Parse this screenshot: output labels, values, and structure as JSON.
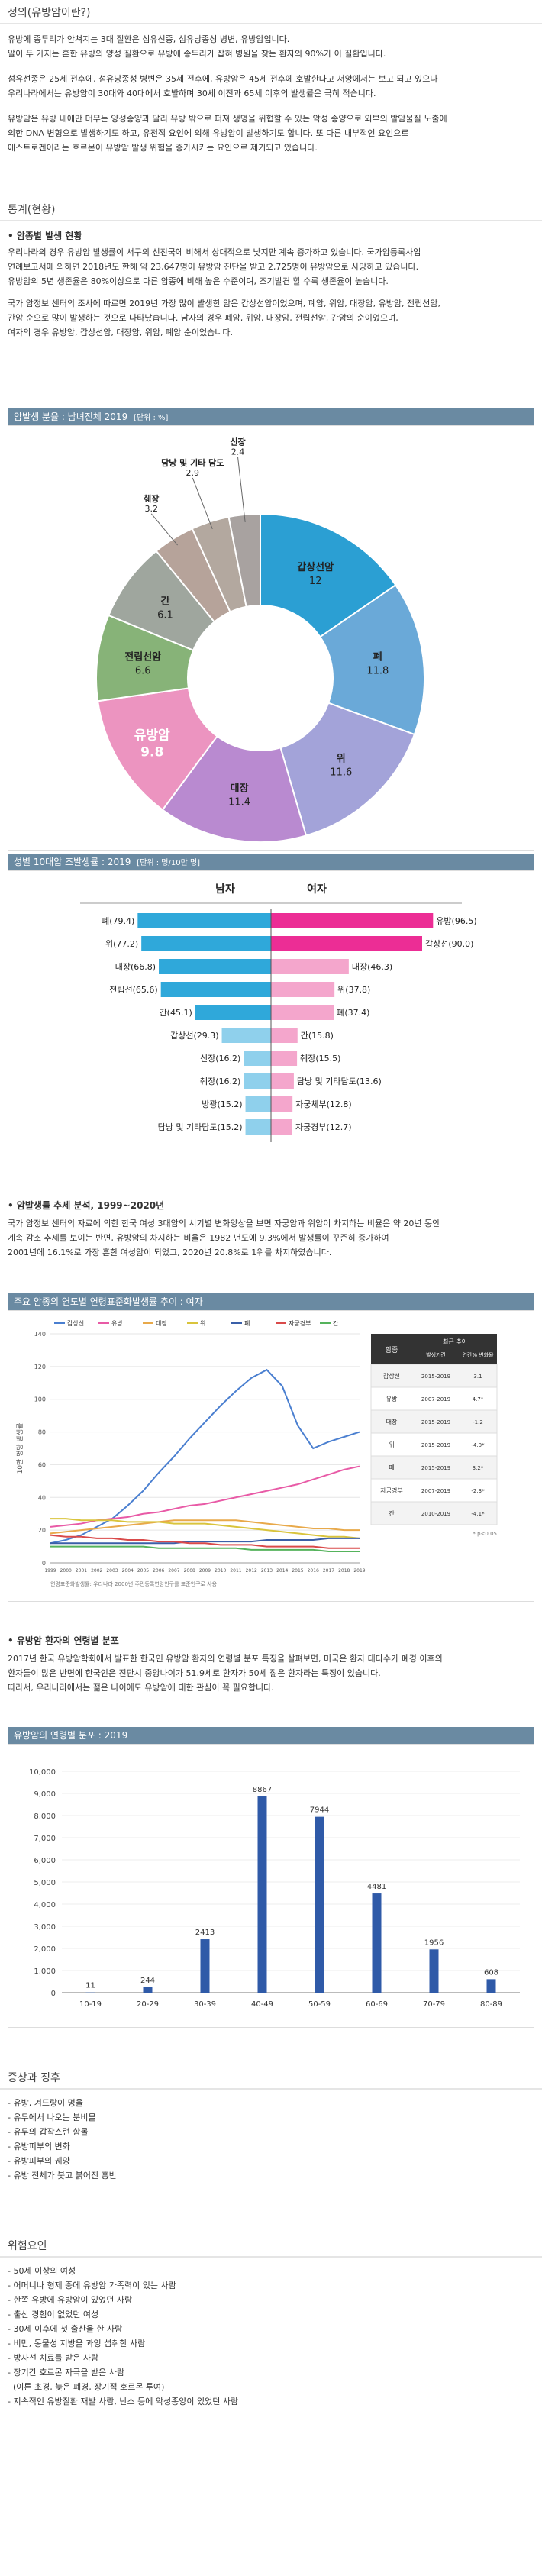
{
  "def": {
    "title": "정의(유방암이란?)",
    "paras": [
      "유방에 종두리가 안쳐지는 3대 질환은 섬유선종, 섬유낭종성 병변, 유방암입니다.",
      "알이 두 가지는 흔한 유방의 양성 질환으로 유방에 종두리가 잡혀 병원을 찾는 환자의 90%가 이 질환입니다.",
      "섬유선종은 25세 전후에, 섬유낭종성 병변은 35세 전후에, 유방암은 45세 전후에 호발한다고 서양에서는 보고 되고 있으나",
      "우리나라에서는 유방암이 30대와 40대에서 호발하며 30세 이전과 65세 이후의 발생률은 극히 적습니다.",
      "유방암은 유방 내에만 머무는 양성종양과 달리 유방 밖으로 퍼져 생명을 위협할 수 있는 악성 종양으로 외부의 발암물질 노출에",
      "의한 DNA 변형으로 발생하기도 하고, 유전적 요인에 의해 유방암이 발생하기도 합니다. 또 다른 내부적인 요인으로",
      "에스트로겐이라는 호르몬이 유방암 발생 위험을 증가시키는 요인으로 제기되고 있습니다."
    ]
  },
  "stats": {
    "title": "통계(현황)",
    "sub1": "• 암종별 발생 현황",
    "paras1": [
      "우리나라의 경우 유방암 발생률이 서구의 선진국에 비해서 상대적으로 낮지만 계속 증가하고 있습니다. 국가암등록사업",
      "연례보고서에 의하면 2018년도 한해 약 23,647명이 유방암 진단을 받고 2,725명이 유방암으로 사망하고 있습니다.",
      "유방암의 5년 생존율은 80%이상으로 다른 암종에 비해 높은 수준이며, 조기발견 할 수록 생존율이 높습니다.",
      "국가 암정보 센터의 조사에 따르면 2019년 가장 많이 발생한 암은 갑상선암이었으며, 폐암, 위암, 대장암, 유방암, 전립선암,",
      "간암 순으로 많이 발생하는 것으로 나타났습니다. 남자의 경우 폐암, 위암, 대장암, 전립선암, 간암의 순이었으며,",
      "여자의 경우 유방암, 갑상선암, 대장암, 위암, 폐암 순이었습니다."
    ]
  },
  "donut": {
    "header": "암발생 분율 : 남녀전체 2019",
    "unit": "[단위 : %]",
    "slices": [
      {
        "label": "갑상선암",
        "value": 12,
        "color": "#2b9fd3"
      },
      {
        "label": "폐",
        "value": 11.8,
        "color": "#6aa9d8"
      },
      {
        "label": "위",
        "value": 11.6,
        "color": "#a3a3d9"
      },
      {
        "label": "대장",
        "value": 11.4,
        "color": "#b98ad0"
      },
      {
        "label": "유방암",
        "value": 9.8,
        "color": "#ec94c0"
      },
      {
        "label": "전립선암",
        "value": 6.6,
        "color": "#87b378"
      },
      {
        "label": "간",
        "value": 6.1,
        "color": "#9fa69e"
      },
      {
        "label": "췌장",
        "value": 3.2,
        "color": "#b6a39a"
      },
      {
        "label": "담낭 및 기타 담도",
        "value": 2.9,
        "color": "#b3a89f"
      },
      {
        "label": "신장",
        "value": 2.4,
        "color": "#a8a2a0"
      }
    ]
  },
  "chart_data": [
    {
      "type": "pie",
      "title": "암발생 분율 : 남녀전체 2019",
      "categories": [
        "갑상선암",
        "폐",
        "위",
        "대장",
        "유방암",
        "전립선암",
        "간",
        "췌장",
        "담낭 및 기타 담도",
        "신장"
      ],
      "values": [
        12,
        11.8,
        11.6,
        11.4,
        9.8,
        6.6,
        6.1,
        3.2,
        2.9,
        2.4
      ]
    },
    {
      "type": "bar",
      "title": "성별 10대암 조발생률 : 2019",
      "series": [
        {
          "name": "남자",
          "categories": [
            "폐",
            "위",
            "대장",
            "전립선",
            "간",
            "갑상선",
            "신장",
            "췌장",
            "방광",
            "담낭 및 기타담도"
          ],
          "values": [
            79.4,
            77.2,
            66.8,
            65.6,
            45.1,
            29.3,
            16.2,
            16.2,
            15.2,
            15.2
          ]
        },
        {
          "name": "여자",
          "categories": [
            "유방",
            "갑상선",
            "대장",
            "위",
            "폐",
            "간",
            "췌장",
            "담낭 및 기타담도",
            "자궁체부",
            "자궁경부"
          ],
          "values": [
            96.5,
            90.0,
            46.3,
            37.8,
            37.4,
            15.8,
            15.5,
            13.6,
            12.8,
            12.7
          ]
        }
      ]
    },
    {
      "type": "line",
      "title": "주요 암종의 연도별 연령표준화발생률 추이 : 여자",
      "x": [
        1999,
        2000,
        2001,
        2002,
        2003,
        2004,
        2005,
        2006,
        2007,
        2008,
        2009,
        2010,
        2011,
        2012,
        2013,
        2014,
        2015,
        2016,
        2017,
        2018,
        2019
      ],
      "ylim": [
        0,
        140
      ],
      "series": [
        {
          "name": "갑상선",
          "values": [
            12,
            14,
            17,
            22,
            27,
            35,
            44,
            55,
            65,
            76,
            86,
            96,
            105,
            113,
            118,
            108,
            84,
            70,
            74,
            77,
            80
          ]
        },
        {
          "name": "유방",
          "values": [
            22,
            23,
            24,
            26,
            27,
            28,
            30,
            31,
            33,
            35,
            36,
            38,
            40,
            42,
            44,
            46,
            48,
            51,
            54,
            57,
            59
          ]
        },
        {
          "name": "대장",
          "values": [
            18,
            19,
            20,
            21,
            22,
            23,
            24,
            25,
            26,
            26,
            26,
            26,
            26,
            25,
            24,
            23,
            22,
            21,
            21,
            20,
            20
          ]
        },
        {
          "name": "위",
          "values": [
            27,
            27,
            26,
            26,
            26,
            25,
            25,
            25,
            24,
            24,
            24,
            23,
            22,
            21,
            20,
            19,
            18,
            17,
            16,
            16,
            15
          ]
        },
        {
          "name": "폐",
          "values": [
            12,
            12,
            12,
            12,
            12,
            12,
            12,
            12,
            12,
            13,
            13,
            13,
            13,
            13,
            14,
            14,
            14,
            14,
            15,
            15,
            15
          ]
        },
        {
          "name": "자궁경부",
          "values": [
            17,
            16,
            16,
            15,
            15,
            14,
            14,
            13,
            13,
            12,
            12,
            11,
            11,
            11,
            10,
            10,
            10,
            10,
            9,
            9,
            9
          ]
        },
        {
          "name": "간",
          "values": [
            10,
            10,
            10,
            10,
            10,
            10,
            10,
            9,
            9,
            9,
            9,
            9,
            9,
            8,
            8,
            8,
            8,
            8,
            7,
            7,
            7
          ]
        }
      ]
    },
    {
      "type": "bar",
      "title": "유방암의 연령별 분포 : 2019",
      "categories": [
        "10-19",
        "20-29",
        "30-39",
        "40-49",
        "50-59",
        "60-69",
        "70-79",
        "80-89"
      ],
      "values": [
        11,
        244,
        2413,
        8867,
        7944,
        4481,
        1956,
        608
      ],
      "ylim": [
        0,
        10000
      ]
    }
  ],
  "sexbar": {
    "header": "성별 10대암 조발생률 : 2019",
    "unit": "[단위 : 명/10만 명]",
    "male_label": "남자",
    "female_label": "여자",
    "male_color": "#2fa8da",
    "female_color": "#ec2d95",
    "female_light": "#f4a6cc",
    "male_light": "#8fd0ec",
    "male": [
      {
        "label": "폐(79.4)",
        "value": 79.4
      },
      {
        "label": "위(77.2)",
        "value": 77.2
      },
      {
        "label": "대장(66.8)",
        "value": 66.8
      },
      {
        "label": "전립선(65.6)",
        "value": 65.6
      },
      {
        "label": "간(45.1)",
        "value": 45.1
      },
      {
        "label": "갑상선(29.3)",
        "value": 29.3
      },
      {
        "label": "신장(16.2)",
        "value": 16.2
      },
      {
        "label": "췌장(16.2)",
        "value": 16.2
      },
      {
        "label": "방광(15.2)",
        "value": 15.2
      },
      {
        "label": "담낭 및 기타담도(15.2)",
        "value": 15.2
      }
    ],
    "female": [
      {
        "label": "유방(96.5)",
        "value": 96.5
      },
      {
        "label": "갑상선(90.0)",
        "value": 90.0
      },
      {
        "label": "대장(46.3)",
        "value": 46.3
      },
      {
        "label": "위(37.8)",
        "value": 37.8
      },
      {
        "label": "폐(37.4)",
        "value": 37.4
      },
      {
        "label": "간(15.8)",
        "value": 15.8
      },
      {
        "label": "췌장(15.5)",
        "value": 15.5
      },
      {
        "label": "담낭 및 기타담도(13.6)",
        "value": 13.6
      },
      {
        "label": "자궁체부(12.8)",
        "value": 12.8
      },
      {
        "label": "자궁경부(12.7)",
        "value": 12.7
      }
    ]
  },
  "trend": {
    "sub": "• 암발생률 추세 분석, 1999~2020년",
    "paras": [
      "국가 암정보 센터의 자료에 의한 한국 여성 3대암의 시기별 변화양상을 보면 자궁암과 위암이 차지하는 비율은 약 20년 동안",
      "계속 감소 추세를 보이는 반면, 유방암의 차지하는 비율은 1982 년도에 9.3%에서 발생률이 꾸준히 증가하여",
      "2001년에 16.1%로 가장 흔한 여성암이 되었고, 2020년 20.8%로 1위를 차지하였습니다."
    ]
  },
  "line": {
    "header": "주요 암종의 연도별 연령표준화발생률 추이 : 여자",
    "ylabel": "10만 명당 발생률",
    "yticks": [
      "0",
      "20",
      "40",
      "60",
      "80",
      "100",
      "120",
      "140"
    ],
    "xticks": [
      "1999",
      "2000",
      "2001",
      "2002",
      "2003",
      "2004",
      "2005",
      "2006",
      "2007",
      "2008",
      "2009",
      "2010",
      "2011",
      "2012",
      "2013",
      "2014",
      "2015",
      "2016",
      "2017",
      "2018",
      "2019"
    ],
    "legend": [
      {
        "name": "갑상선",
        "color": "#4a7fd0"
      },
      {
        "name": "유방",
        "color": "#e85aa6"
      },
      {
        "name": "대장",
        "color": "#e8a94a"
      },
      {
        "name": "위",
        "color": "#d9c43c"
      },
      {
        "name": "폐",
        "color": "#3a5fa8"
      },
      {
        "name": "자궁경부",
        "color": "#d94a4a"
      },
      {
        "name": "간",
        "color": "#55b35c"
      }
    ],
    "footnote": "연령표준화발생률: 우리나라 2000년 주민등록연앙인구를 표준인구로 사용",
    "table": {
      "header": [
        "암종",
        "최근 추이"
      ],
      "subheader": [
        "발생기간",
        "연간% 변화율"
      ],
      "rows": [
        [
          "갑상선",
          "2015-2019",
          "3.1"
        ],
        [
          "유방",
          "2007-2019",
          "4.7*"
        ],
        [
          "대장",
          "2015-2019",
          "-1.2"
        ],
        [
          "위",
          "2015-2019",
          "-4.0*"
        ],
        [
          "폐",
          "2015-2019",
          "3.2*"
        ],
        [
          "자궁경부",
          "2007-2019",
          "-2.3*"
        ],
        [
          "간",
          "2010-2019",
          "-4.1*"
        ]
      ],
      "note": "* p<0.05"
    }
  },
  "age": {
    "sub": "• 유방암 환자의 연령별 분포",
    "paras": [
      "2017년 한국 유방암학회에서 발표한 한국인 유방암 환자의 연령별 분포 특징을 살펴보면, 미국은 환자 대다수가 폐경 이후의",
      "환자들이 많은 반면에 한국인은 진단시 중앙나이가 51.9세로 환자가 50세 젊은 환자라는 특징이 있습니다.",
      "따라서, 우리나라에서는 젊은 나이에도 유방암에 대한 관심이 꼭 필요합니다."
    ],
    "header": "유방암의 연령별 분포 : 2019",
    "yticks": [
      "0",
      "1,000",
      "2,000",
      "3,000",
      "4,000",
      "5,000",
      "6,000",
      "7,000",
      "8,000",
      "9,000",
      "10,000"
    ],
    "categories": [
      "10-19",
      "20-29",
      "30-39",
      "40-49",
      "50-59",
      "60-69",
      "70-79",
      "80-89"
    ],
    "values": [
      11,
      244,
      2413,
      8867,
      7944,
      4481,
      1956,
      608
    ],
    "bar_color": "#2f5aa8"
  },
  "symptoms": {
    "title": "증상과 징후",
    "items": [
      "- 유방, 겨드랑이 멍울",
      "- 유두에서 나오는 분비물",
      "- 유두의 갑작스런 함몰",
      "- 유방피부의 변화",
      "- 유방피부의 궤양",
      "- 유방 전체가 붓고 붉어진 홍반"
    ]
  },
  "risk": {
    "title": "위험요인",
    "items": [
      "- 50세 이상의 여성",
      "- 어머니나 형제 중에 유방암 가족력이 있는 사람",
      "- 한쪽 유방에 유방암이 있었던 사람",
      "- 출산 경험이 없었던 여성",
      "- 30세 이후에 첫 출산을 한 사람",
      "- 비만, 동물성 지방을 과잉 섭취한 사람",
      "- 방사선 치료를 받은 사람",
      "- 장기간 호르몬 자극을 받은 사람",
      "  (이른 초경, 늦은 폐경, 장기적 호르몬 투여)",
      "- 지속적인 유방질환 재발 사람, 난소 등에 악성종양이 있었던 사람"
    ]
  }
}
